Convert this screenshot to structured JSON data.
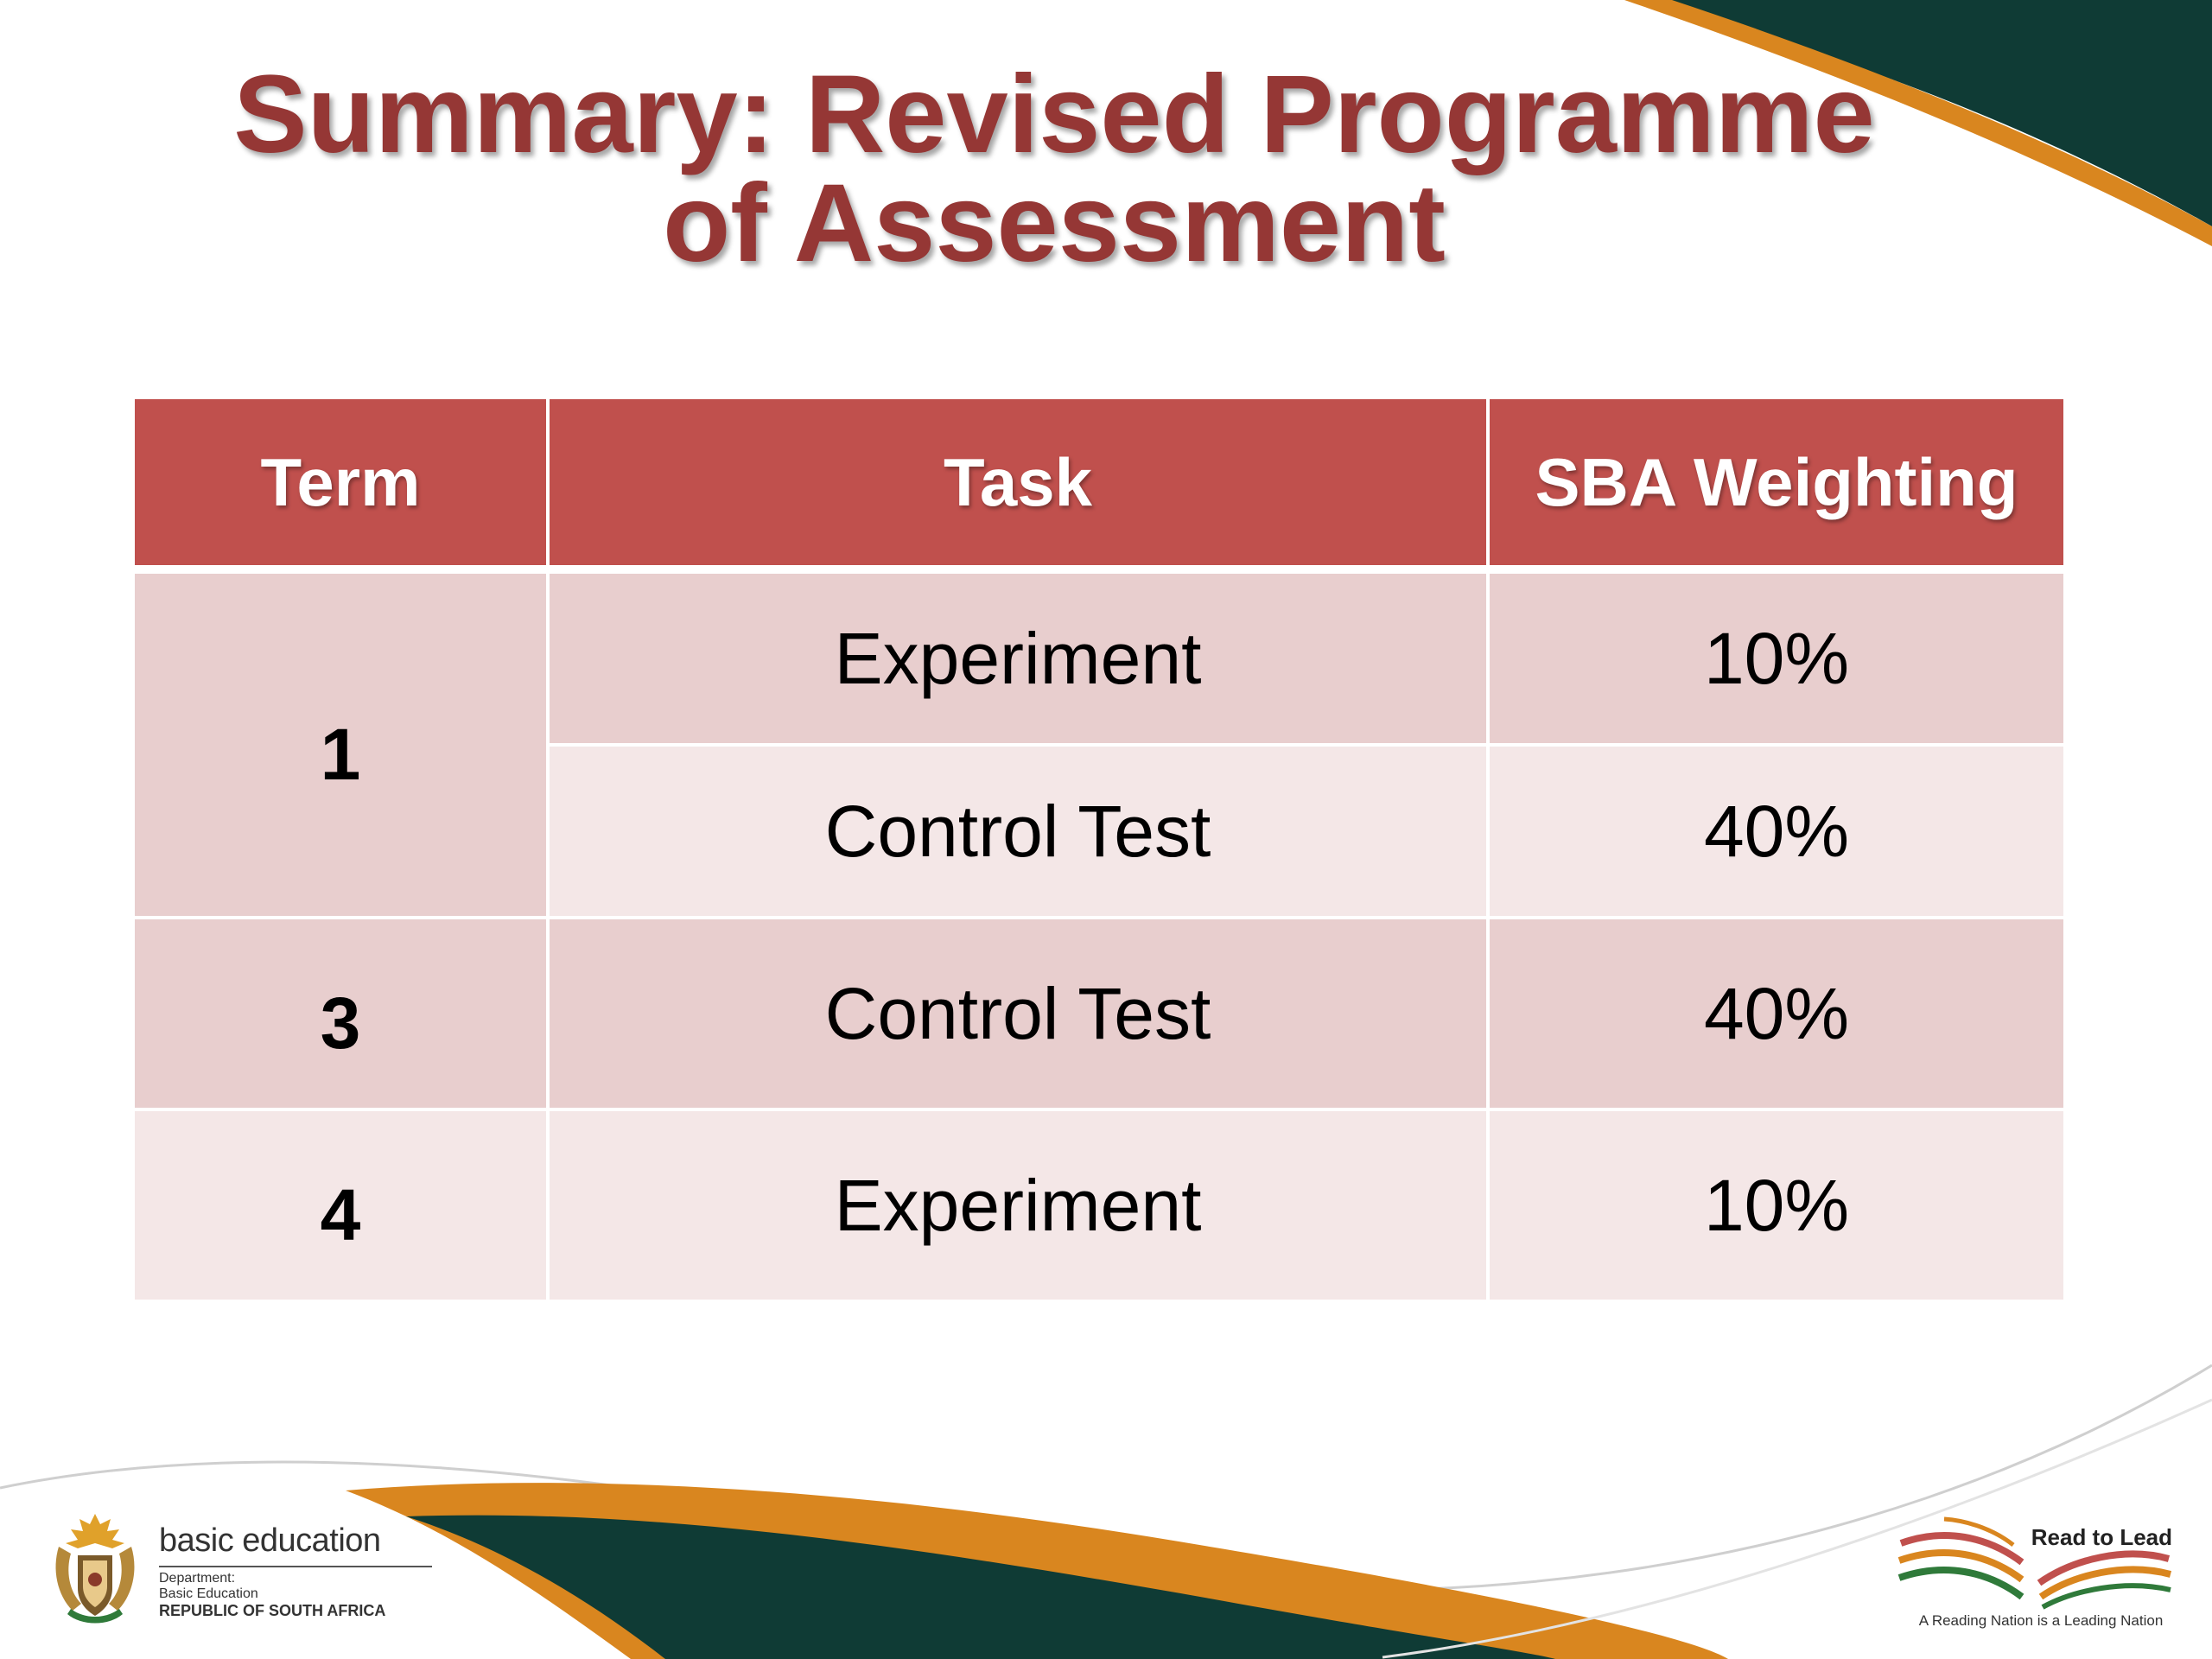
{
  "slide": {
    "title_line1": "Summary: Revised Programme",
    "title_line2": "of Assessment"
  },
  "table": {
    "headers": [
      "Term",
      "Task",
      "SBA Weighting"
    ],
    "rows": [
      {
        "term": "1",
        "task": "Experiment",
        "weighting": "10%"
      },
      {
        "term": "",
        "task": "Control Test",
        "weighting": "40%"
      },
      {
        "term": "3",
        "task": "Control Test",
        "weighting": "40%"
      },
      {
        "term": "4",
        "task": "Experiment",
        "weighting": "10%"
      }
    ]
  },
  "footer": {
    "left_logo": {
      "brand": "basic education",
      "dept_line1": "Department:",
      "dept_line2": "Basic Education",
      "country": "REPUBLIC OF SOUTH AFRICA",
      "icon": "coat-of-arms-icon"
    },
    "right_logo": {
      "title": "Read to Lead",
      "tagline": "A Reading Nation is a Leading Nation",
      "icon": "open-book-icon"
    }
  },
  "colors": {
    "title": "#953735",
    "header_bg": "#c0504d",
    "row_dark": "#e8cece",
    "row_light": "#f4e7e7",
    "swoosh_green": "#0f3b35",
    "swoosh_orange": "#d9861f"
  }
}
